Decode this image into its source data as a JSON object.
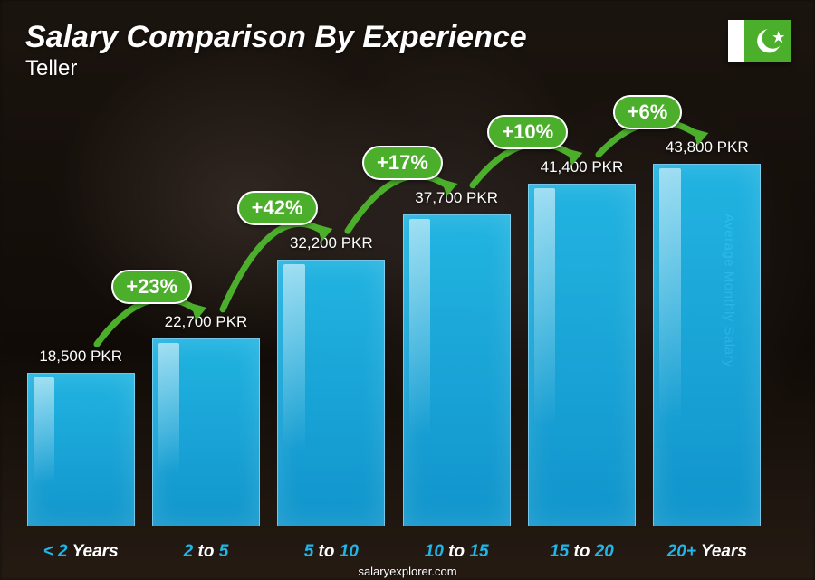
{
  "title": "Salary Comparison By Experience",
  "subtitle": "Teller",
  "axis_label": "Average Monthly Salary",
  "footer": "salaryexplorer.com",
  "flag": {
    "country": "Pakistan",
    "left_color": "#ffffff",
    "right_color": "#4CAF2B"
  },
  "chart": {
    "type": "bar",
    "bar_color": "#18b4e8",
    "bar_border_color": "#bfe9f7",
    "background_photo_tone": "#241a12",
    "max_value": 43800,
    "bars": [
      {
        "label_num": "< 2",
        "label_word": "Years",
        "value": 18500,
        "value_label": "18,500 PKR"
      },
      {
        "label_num": "2",
        "label_mid": " to ",
        "label_num2": "5",
        "value": 22700,
        "value_label": "22,700 PKR"
      },
      {
        "label_num": "5",
        "label_mid": " to ",
        "label_num2": "10",
        "value": 32200,
        "value_label": "32,200 PKR"
      },
      {
        "label_num": "10",
        "label_mid": " to ",
        "label_num2": "15",
        "value": 37700,
        "value_label": "37,700 PKR"
      },
      {
        "label_num": "15",
        "label_mid": " to ",
        "label_num2": "20",
        "value": 41400,
        "value_label": "41,400 PKR"
      },
      {
        "label_num": "20+",
        "label_word": "Years",
        "value": 43800,
        "value_label": "43,800 PKR"
      }
    ],
    "increments": [
      {
        "from": 0,
        "to": 1,
        "pct": "+23%"
      },
      {
        "from": 1,
        "to": 2,
        "pct": "+42%"
      },
      {
        "from": 2,
        "to": 3,
        "pct": "+17%"
      },
      {
        "from": 3,
        "to": 4,
        "pct": "+10%"
      },
      {
        "from": 4,
        "to": 5,
        "pct": "+6%"
      }
    ],
    "increment_badge_bg": "#4CAF2B",
    "increment_arrow_color": "#4CAF2B",
    "title_fontsize": 34,
    "subtitle_fontsize": 24,
    "value_label_fontsize": 17,
    "xlabel_fontsize": 19,
    "pct_fontsize": 22
  }
}
